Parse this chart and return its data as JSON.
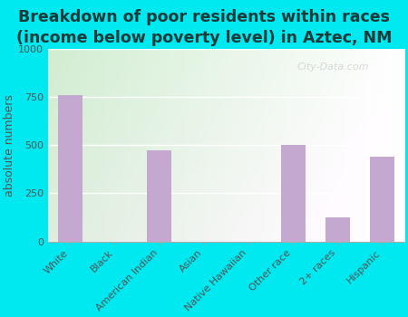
{
  "title": "Breakdown of poor residents within races\n(income below poverty level) in Aztec, NM",
  "ylabel": "absolute numbers",
  "categories": [
    "White",
    "Black",
    "American Indian",
    "Asian",
    "Native Hawaiian",
    "Other race",
    "2+ races",
    "Hispanic"
  ],
  "values": [
    760,
    0,
    470,
    0,
    0,
    500,
    125,
    440
  ],
  "bar_color": "#c4a8d0",
  "figure_bg": "#00e8f0",
  "plot_bg_left": "#c8e6c0",
  "plot_bg_right": "#f5fff5",
  "ylim": [
    0,
    1000
  ],
  "yticks": [
    0,
    250,
    500,
    750,
    1000
  ],
  "title_fontsize": 12.5,
  "title_color": "#1a3a3a",
  "ylabel_fontsize": 9,
  "tick_label_color": "#555555",
  "watermark": "City-Data.com"
}
